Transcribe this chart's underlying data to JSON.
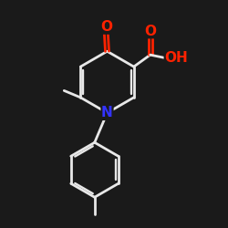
{
  "bg_color": "#1a1a1a",
  "bond_color": "#e8e8e8",
  "N_color": "#3333ff",
  "O_color": "#ff2200",
  "bond_width": 2.0,
  "figsize": [
    2.5,
    2.5
  ],
  "dpi": 100,
  "xlim": [
    0,
    10
  ],
  "ylim": [
    0,
    10
  ]
}
